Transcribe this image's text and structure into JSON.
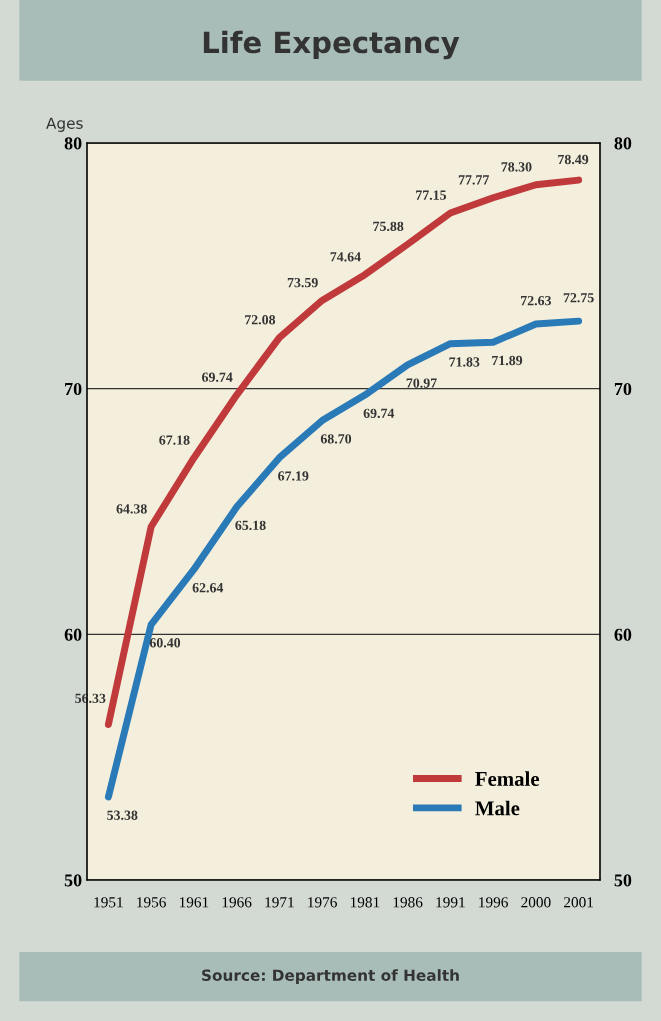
{
  "chart_data": {
    "type": "line",
    "title": "Life Expectancy",
    "ylabel": "Ages",
    "categories": [
      "1951",
      "1956",
      "1961",
      "1966",
      "1971",
      "1976",
      "1981",
      "1986",
      "1991",
      "1996",
      "2000",
      "2001"
    ],
    "series": [
      {
        "name": "Female",
        "color": "#c0393b",
        "values": [
          56.33,
          64.38,
          67.18,
          69.74,
          72.08,
          73.59,
          74.64,
          75.88,
          77.15,
          77.77,
          78.3,
          78.49
        ],
        "value_labels": [
          "56.33",
          "64.38",
          "67.18",
          "69.74",
          "72.08",
          "73.59",
          "74.64",
          "75.88",
          "77.15",
          "77.77",
          "78.30",
          "78.49"
        ]
      },
      {
        "name": "Male",
        "color": "#2a7ab8",
        "values": [
          53.38,
          60.4,
          62.64,
          65.18,
          67.19,
          68.7,
          69.74,
          70.97,
          71.83,
          71.89,
          72.63,
          72.75
        ],
        "value_labels": [
          "53.38",
          "60.40",
          "62.64",
          "65.18",
          "67.19",
          "68.70",
          "69.74",
          "70.97",
          "71.83",
          "71.89",
          "72.63",
          "72.75"
        ]
      }
    ],
    "ylim": [
      50,
      80
    ],
    "yticks": [
      50,
      60,
      70,
      80
    ],
    "y2lim": [
      50,
      80
    ],
    "y2ticks": [
      50,
      60,
      70,
      80
    ],
    "grid": "y",
    "legend": "bottom right",
    "marker": "none",
    "line_style": "solid",
    "annotations": [
      "Source: Department of Health"
    ]
  }
}
